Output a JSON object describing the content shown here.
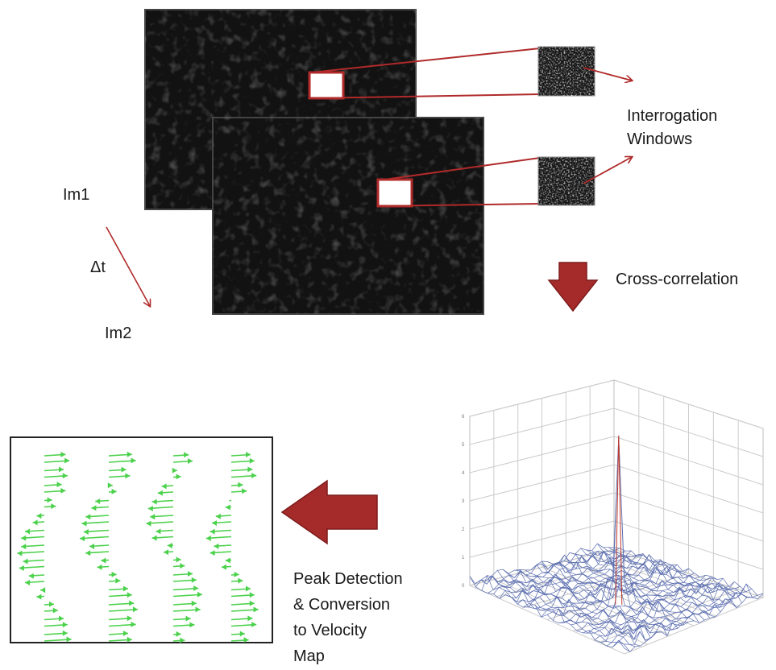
{
  "labels": {
    "im1": "Im1",
    "delta_t": "Δt",
    "im2": "Im2",
    "interrogation_line1": "Interrogation",
    "interrogation_line2": "Windows",
    "cross_correlation": "Cross-correlation",
    "peak_line1": "Peak Detection",
    "peak_line2": "& Conversion",
    "peak_line3": "to Velocity",
    "peak_line4": "Map"
  },
  "colors": {
    "accent_red": "#b02a2a",
    "arrow_fill": "#a52a2a",
    "image_bg": "#121212",
    "vector_green": "#4bd14b",
    "mesh_line": "#5d6fb0",
    "grid_line": "#cccccc"
  },
  "icons": {
    "down_arrow": "block-arrow-down",
    "left_arrow": "block-arrow-left"
  },
  "correlation_plot": {
    "type": "surface-3d",
    "peak_value": 6,
    "vertical_axis_ticks": [
      "0",
      "1",
      "2",
      "3",
      "4",
      "5",
      "6"
    ]
  },
  "vector_columns": [
    [
      0.55,
      0.5,
      0.45,
      0.2,
      -0.2,
      -0.5,
      -0.6,
      -0.55,
      -0.4,
      -0.1,
      0.25,
      0.5,
      0.6
    ],
    [
      0.6,
      0.45,
      0.1,
      -0.35,
      -0.6,
      -0.65,
      -0.5,
      -0.2,
      0.2,
      0.5,
      0.65,
      0.6,
      0.5
    ],
    [
      0.4,
      0.1,
      -0.3,
      -0.55,
      -0.6,
      -0.45,
      -0.15,
      0.2,
      0.5,
      0.65,
      0.6,
      0.45,
      0.2
    ],
    [
      0.5,
      0.55,
      0.3,
      -0.05,
      -0.4,
      -0.55,
      -0.45,
      -0.15,
      0.2,
      0.5,
      0.6,
      0.55,
      0.35
    ]
  ]
}
